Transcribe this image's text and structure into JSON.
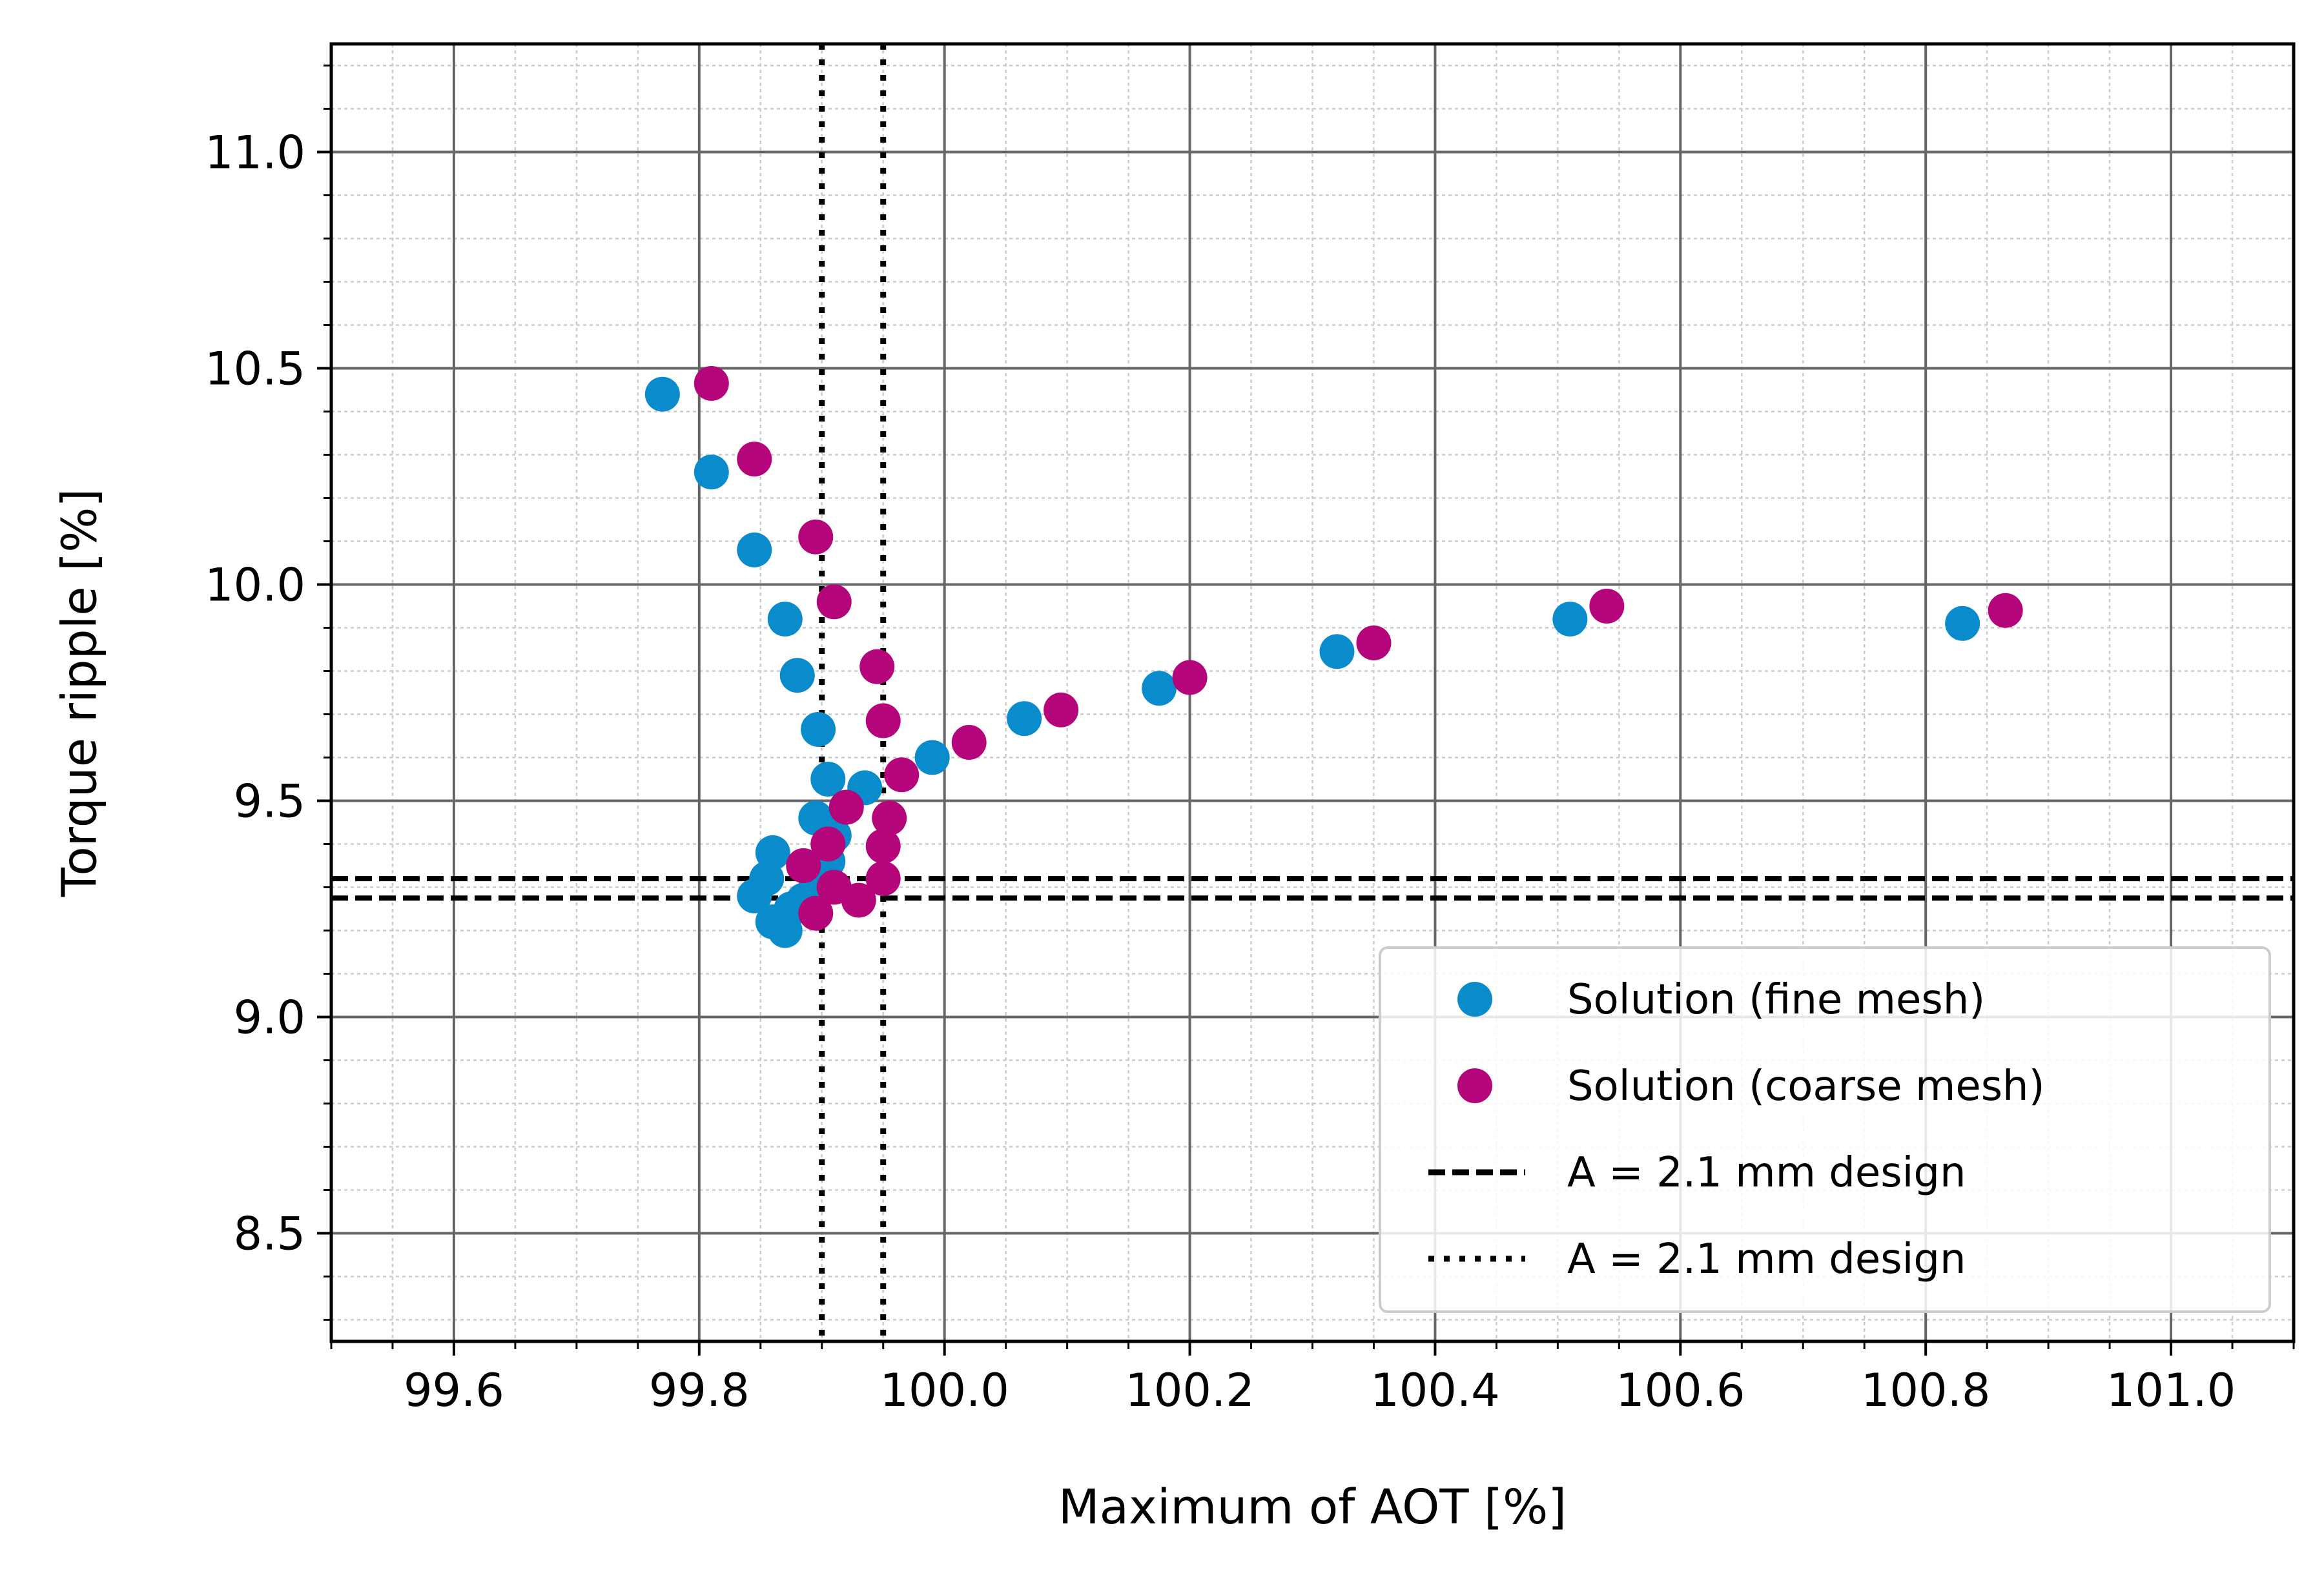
{
  "chart_data": {
    "type": "scatter",
    "xlabel": "Maximum of AOT [%]",
    "ylabel": "Torque ripple [%]",
    "xlim": [
      99.5,
      101.1
    ],
    "ylim": [
      8.25,
      11.25
    ],
    "xticks": [
      99.6,
      99.8,
      100.0,
      100.2,
      100.4,
      100.6,
      100.8,
      101.0
    ],
    "xtick_labels": [
      "99.6",
      "99.8",
      "100.0",
      "100.2",
      "100.4",
      "100.6",
      "100.8",
      "101.0"
    ],
    "yticks": [
      8.5,
      9.0,
      9.5,
      10.0,
      10.5,
      11.0
    ],
    "ytick_labels": [
      "8.5",
      "9.0",
      "9.5",
      "10.0",
      "10.5",
      "11.0"
    ],
    "x_minor_step": 0.05,
    "y_minor_step": 0.1,
    "grid": true,
    "legend_position": "bottom-right",
    "series": [
      {
        "name": "Solution (fine mesh)",
        "kind": "scatter",
        "color": "#0a8ccc",
        "x": [
          99.77,
          99.81,
          99.845,
          99.87,
          99.88,
          99.897,
          99.905,
          99.935,
          99.99,
          100.065,
          100.175,
          100.32,
          100.51,
          100.83,
          99.895,
          99.91,
          99.905,
          99.86,
          99.855,
          99.845,
          99.86,
          99.87,
          99.875,
          99.885,
          99.895
        ],
        "y": [
          10.44,
          10.26,
          10.08,
          9.92,
          9.79,
          9.665,
          9.55,
          9.53,
          9.6,
          9.69,
          9.76,
          9.845,
          9.92,
          9.91,
          9.46,
          9.42,
          9.36,
          9.38,
          9.32,
          9.28,
          9.22,
          9.2,
          9.25,
          9.27,
          9.3
        ]
      },
      {
        "name": "Solution (coarse mesh)",
        "kind": "scatter",
        "color": "#b5057a",
        "x": [
          99.81,
          99.845,
          99.895,
          99.91,
          99.945,
          99.95,
          99.965,
          99.92,
          99.955,
          99.95,
          99.905,
          99.885,
          99.91,
          99.95,
          99.93,
          100.02,
          100.095,
          100.2,
          100.35,
          100.54,
          100.865,
          99.895
        ],
        "y": [
          10.465,
          10.29,
          10.11,
          9.96,
          9.81,
          9.685,
          9.56,
          9.485,
          9.46,
          9.395,
          9.4,
          9.35,
          9.3,
          9.32,
          9.27,
          9.635,
          9.71,
          9.785,
          9.865,
          9.95,
          9.94,
          9.24
        ]
      },
      {
        "name": "A = 2.1 mm design",
        "kind": "hlines",
        "style": "dashed",
        "color": "#000000",
        "y": [
          9.275,
          9.32
        ]
      },
      {
        "name": "A = 2.1 mm design",
        "kind": "vlines",
        "style": "dotted",
        "color": "#000000",
        "x": [
          99.9,
          99.95
        ]
      }
    ]
  }
}
